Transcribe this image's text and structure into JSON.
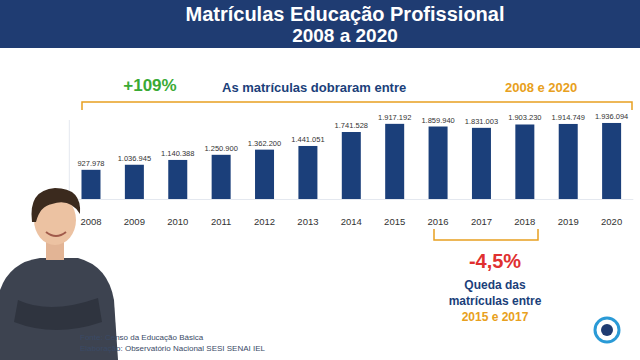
{
  "chart_data": {
    "type": "bar",
    "title": "Matrículas Educação Profissional",
    "subtitle": "2008 a 2020",
    "categories": [
      "2008",
      "2009",
      "2010",
      "2011",
      "2012",
      "2013",
      "2014",
      "2015",
      "2016",
      "2017",
      "2018",
      "2019",
      "2020"
    ],
    "values": [
      927978,
      1036945,
      1140388,
      1250900,
      1362200,
      1441051,
      1741528,
      1917192,
      1859940,
      1831003,
      1903230,
      1914749,
      1936094
    ],
    "value_labels": [
      "927.978",
      "1.036.945",
      "1.140.388",
      "1.250.900",
      "1.362.200",
      "1.441.051",
      "1.741.528",
      "1.917.192",
      "1.859.940",
      "1.831.003",
      "1.903.230",
      "1.914.749",
      "1.936.094"
    ],
    "color": "#1b3f7a",
    "ylim": [
      300000,
      2000000
    ],
    "grid": false,
    "data_labels": true,
    "tick_labels": "x",
    "annotations": {
      "growth": {
        "value_text": "+109%",
        "text": "As matrículas dobraram entre",
        "period": "2008 e 2020"
      },
      "drop": {
        "value_text": "-4,5%",
        "text_lines": [
          "Queda das",
          "matrículas entre"
        ],
        "period": "2015 e 2017"
      }
    },
    "source": [
      "Fonte: Censo da Educação Básica",
      "Elaboração: Observatório Nacional SESI SENAI IEL"
    ]
  }
}
